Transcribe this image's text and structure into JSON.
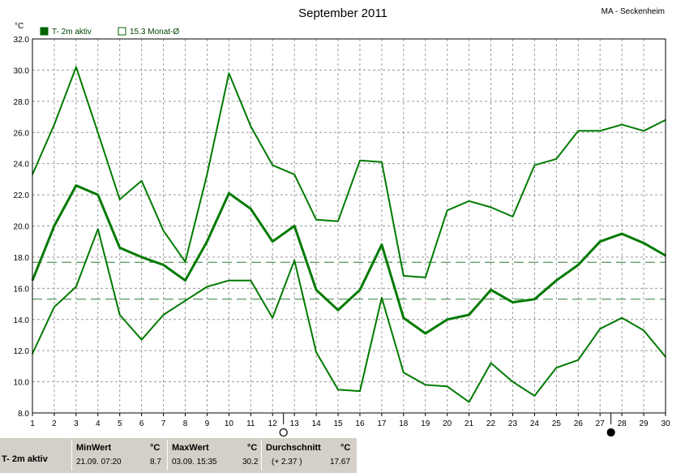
{
  "title": "September 2011",
  "station": "MA - Seckenheim",
  "legend": {
    "series_label": "T- 2m aktiv",
    "mean_label": "15.3 Monat-Ø"
  },
  "colors": {
    "series": "#007a00",
    "legend_box": "#006400",
    "grid": "#9a9a9a",
    "mean_line": "#2e7d32",
    "panel": "#d4d0c8"
  },
  "chart_data": {
    "type": "line",
    "title": "September 2011",
    "ylabel": "°C",
    "xlabel": "",
    "x": [
      1,
      2,
      3,
      4,
      5,
      6,
      7,
      8,
      9,
      10,
      11,
      12,
      13,
      14,
      15,
      16,
      17,
      18,
      19,
      20,
      21,
      22,
      23,
      24,
      25,
      26,
      27,
      28,
      29,
      30
    ],
    "xlim": [
      1,
      30
    ],
    "ylim": [
      8,
      32
    ],
    "yticks": [
      "8.0",
      "10.0",
      "12.0",
      "14.0",
      "16.0",
      "18.0",
      "20.0",
      "22.0",
      "24.0",
      "26.0",
      "28.0",
      "30.0",
      "32.0"
    ],
    "xticks": [
      "1",
      "2",
      "3",
      "4",
      "5",
      "6",
      "7",
      "8",
      "9",
      "10",
      "11",
      "12",
      "13",
      "14",
      "15",
      "16",
      "17",
      "18",
      "19",
      "20",
      "21",
      "22",
      "23",
      "24",
      "25",
      "26",
      "27",
      "28",
      "29",
      "30"
    ],
    "grid": true,
    "legend_position": "top-left",
    "series": [
      {
        "name": "T- 2m aktiv",
        "role": "mean",
        "values": [
          16.5,
          20.0,
          22.6,
          22.0,
          18.6,
          18.0,
          17.5,
          16.5,
          19.0,
          22.1,
          21.1,
          19.0,
          20.0,
          15.9,
          14.6,
          15.9,
          18.8,
          14.1,
          13.1,
          14.0,
          14.3,
          15.9,
          15.1,
          15.3,
          16.5,
          17.5,
          19.0,
          19.5,
          18.9,
          18.1
        ]
      },
      {
        "role": "max",
        "values": [
          23.3,
          26.5,
          30.2,
          26.0,
          21.7,
          22.9,
          19.7,
          17.7,
          23.3,
          29.8,
          26.4,
          23.9,
          23.3,
          20.4,
          20.3,
          24.2,
          24.1,
          16.8,
          16.7,
          21.0,
          21.6,
          21.2,
          20.6,
          23.9,
          24.3,
          26.1,
          26.1,
          26.5,
          26.1,
          26.8
        ]
      },
      {
        "role": "min",
        "values": [
          11.8,
          14.8,
          16.1,
          19.8,
          14.3,
          12.7,
          14.3,
          15.2,
          16.1,
          16.5,
          16.5,
          14.1,
          17.8,
          11.9,
          9.5,
          9.4,
          15.4,
          10.6,
          9.8,
          9.7,
          8.7,
          11.2,
          10.0,
          9.1,
          10.9,
          11.4,
          13.4,
          14.1,
          13.3,
          11.6
        ]
      }
    ],
    "reference_lines": [
      {
        "label": "15.3 Monat-Ø",
        "value": 15.3
      },
      {
        "value": 17.67
      }
    ],
    "moon_phases": [
      {
        "day": 12.5,
        "phase": "full"
      },
      {
        "day": 27.5,
        "phase": "new"
      }
    ]
  },
  "stats": {
    "row_label": "T- 2m aktiv",
    "row_label2": "MaxWert",
    "min": {
      "header": "MinWert",
      "unit": "°C",
      "datetime": "21.09.  07:20",
      "value": "8.7"
    },
    "max": {
      "header": "MaxWert",
      "unit": "°C",
      "datetime": "03.09.  15:35",
      "value": "30.2"
    },
    "avg": {
      "header": "Durchschnitt",
      "unit": "°C",
      "deviation": "(+ 2.37 )",
      "value": "17.67"
    }
  }
}
